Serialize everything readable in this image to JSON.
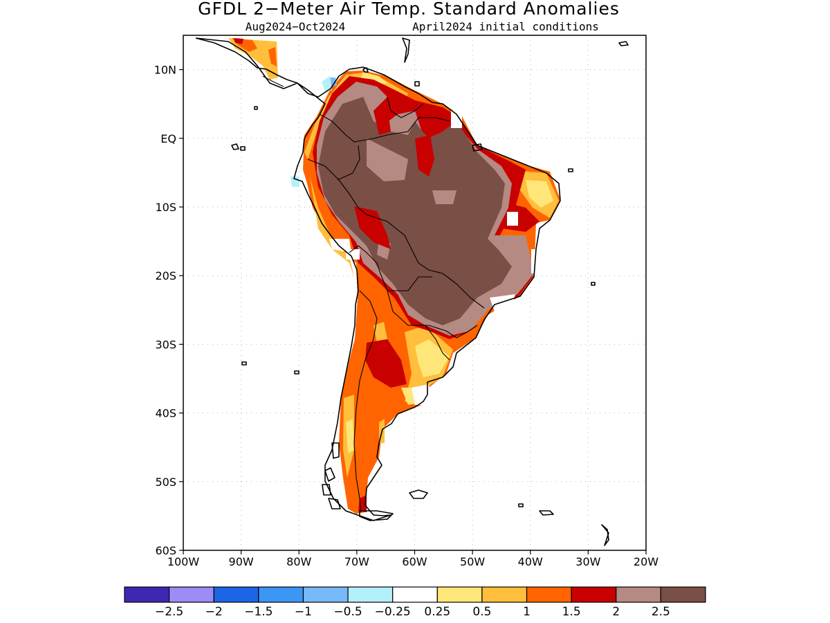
{
  "title": "GFDL 2−Meter Air Temp. Standard Anomalies",
  "subtitle_left": "Aug2024−Oct2024",
  "subtitle_right": "April2024 initial conditions",
  "map": {
    "lon_range": [
      -100,
      -20
    ],
    "lat_range": [
      -60,
      15
    ],
    "x_ticks": [
      {
        "value": -100,
        "label": "100W"
      },
      {
        "value": -90,
        "label": "90W"
      },
      {
        "value": -80,
        "label": "80W"
      },
      {
        "value": -70,
        "label": "70W"
      },
      {
        "value": -60,
        "label": "60W"
      },
      {
        "value": -50,
        "label": "50W"
      },
      {
        "value": -40,
        "label": "40W"
      },
      {
        "value": -30,
        "label": "30W"
      },
      {
        "value": -20,
        "label": "20W"
      }
    ],
    "y_ticks": [
      {
        "value": 10,
        "label": "10N"
      },
      {
        "value": 0,
        "label": "EQ"
      },
      {
        "value": -10,
        "label": "10S"
      },
      {
        "value": -20,
        "label": "20S"
      },
      {
        "value": -30,
        "label": "30S"
      },
      {
        "value": -40,
        "label": "40S"
      },
      {
        "value": -50,
        "label": "50S"
      },
      {
        "value": -60,
        "label": "60S"
      }
    ],
    "grid": "dotted"
  },
  "colorbar": {
    "colors": [
      "#3d28b4",
      "#9b8cf6",
      "#1e64e6",
      "#3c96f5",
      "#78b9fa",
      "#b4f0fa",
      "#ffffff",
      "#ffe678",
      "#ffbe3c",
      "#ff6400",
      "#c80000",
      "#b48a82",
      "#7a4f45"
    ],
    "labels": [
      "−2.5",
      "−2",
      "−1.5",
      "−1",
      "−0.5",
      "−0.25",
      "0.25",
      "0.5",
      "1",
      "1.5",
      "2",
      "2.5"
    ]
  },
  "palette": {
    "white": "#ffffff",
    "yellow": "#ffe678",
    "light_orange": "#ffbe3c",
    "orange": "#ff6400",
    "red": "#c80000",
    "light_brown": "#b48a82",
    "dark_brown": "#7a4f45",
    "light_blue": "#78b9fa",
    "cyan": "#b4f0fa"
  }
}
